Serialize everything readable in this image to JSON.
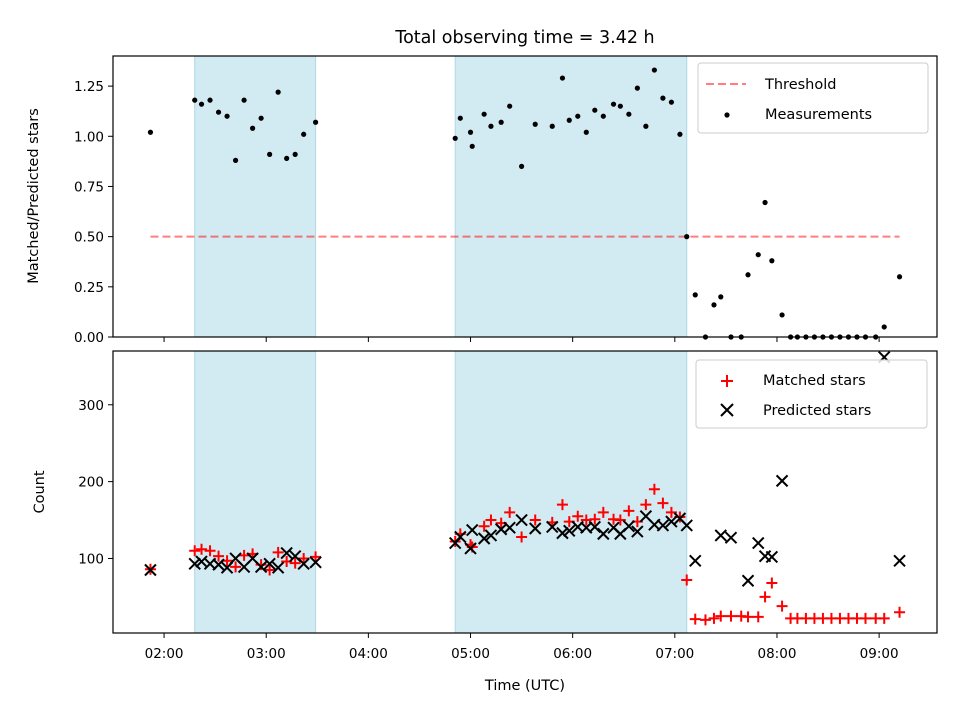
{
  "figure": {
    "title": "Total observing time = 3.42 h"
  },
  "colors": {
    "shade": "#add8e6",
    "threshold": "#ff0000",
    "measurement": "#000000",
    "matched": "#ff0000",
    "predicted": "#000000"
  },
  "chart_data": [
    {
      "type": "scatter",
      "ylabel": "Matched/Predicted stars",
      "xlabel": "",
      "xlim": [
        "01:30",
        "09:34"
      ],
      "ylim": [
        0,
        1.4
      ],
      "yticks": [
        "0.00",
        "0.25",
        "0.50",
        "0.75",
        "1.00",
        "1.25"
      ],
      "shaded_intervals": [
        [
          "02:18",
          "03:29"
        ],
        [
          "04:51",
          "07:07"
        ]
      ],
      "threshold": {
        "name": "Threshold",
        "value": 0.5,
        "x_range": [
          "01:52",
          "09:12"
        ]
      },
      "legend": {
        "position": "upper right",
        "entries": [
          "Threshold",
          "Measurements"
        ]
      },
      "series": [
        {
          "name": "Measurements",
          "x": [
            "01:52",
            "02:18",
            "02:22",
            "02:27",
            "02:32",
            "02:37",
            "02:42",
            "02:47",
            "02:52",
            "02:57",
            "03:02",
            "03:07",
            "03:12",
            "03:17",
            "03:22",
            "03:29",
            "04:51",
            "04:54",
            "05:00",
            "05:01",
            "05:08",
            "05:12",
            "05:18",
            "05:23",
            "05:30",
            "05:38",
            "05:48",
            "05:54",
            "05:58",
            "06:03",
            "06:08",
            "06:13",
            "06:18",
            "06:24",
            "06:28",
            "06:33",
            "06:38",
            "06:43",
            "06:48",
            "06:53",
            "06:58",
            "07:03",
            "07:07",
            "07:12",
            "07:18",
            "07:23",
            "07:27",
            "07:33",
            "07:39",
            "07:43",
            "07:49",
            "07:53",
            "07:57",
            "08:03",
            "08:08",
            "08:12",
            "08:17",
            "08:22",
            "08:27",
            "08:32",
            "08:37",
            "08:42",
            "08:47",
            "08:52",
            "08:58",
            "09:03",
            "09:12"
          ],
          "values": [
            1.02,
            1.18,
            1.16,
            1.18,
            1.12,
            1.1,
            0.88,
            1.18,
            1.04,
            1.09,
            0.91,
            1.22,
            0.89,
            0.91,
            1.01,
            1.07,
            0.99,
            1.09,
            1.02,
            0.95,
            1.11,
            1.05,
            1.07,
            1.15,
            0.85,
            1.06,
            1.05,
            1.29,
            1.08,
            1.1,
            1.02,
            1.13,
            1.1,
            1.16,
            1.15,
            1.11,
            1.24,
            1.05,
            1.33,
            1.19,
            1.17,
            1.01,
            0.5,
            0.21,
            0.0,
            0.16,
            0.2,
            0.0,
            0.0,
            0.31,
            0.41,
            0.67,
            0.38,
            0.11,
            0.0,
            0.0,
            0.0,
            0.0,
            0.0,
            0.0,
            0.0,
            0.0,
            0.0,
            0.0,
            0.0,
            0.05,
            0.3
          ]
        }
      ]
    },
    {
      "type": "scatter",
      "ylabel": "Count",
      "xlabel": "Time (UTC)",
      "xlim": [
        "01:30",
        "09:34"
      ],
      "ylim": [
        3,
        370
      ],
      "yticks": [
        "100",
        "200",
        "300"
      ],
      "xticks": [
        "02:00",
        "03:00",
        "04:00",
        "05:00",
        "06:00",
        "07:00",
        "08:00",
        "09:00"
      ],
      "shaded_intervals": [
        [
          "02:18",
          "03:29"
        ],
        [
          "04:51",
          "07:07"
        ]
      ],
      "legend": {
        "position": "upper right",
        "entries": [
          "Matched stars",
          "Predicted stars"
        ]
      },
      "series": [
        {
          "name": "Matched stars",
          "x": [
            "01:52",
            "02:18",
            "02:22",
            "02:27",
            "02:32",
            "02:37",
            "02:42",
            "02:47",
            "02:52",
            "02:57",
            "03:02",
            "03:07",
            "03:12",
            "03:17",
            "03:22",
            "03:29",
            "04:51",
            "04:54",
            "05:00",
            "05:01",
            "05:08",
            "05:12",
            "05:18",
            "05:23",
            "05:30",
            "05:38",
            "05:48",
            "05:54",
            "05:58",
            "06:03",
            "06:08",
            "06:13",
            "06:18",
            "06:24",
            "06:28",
            "06:33",
            "06:38",
            "06:43",
            "06:48",
            "06:53",
            "06:58",
            "07:03",
            "07:07",
            "07:12",
            "07:18",
            "07:23",
            "07:27",
            "07:33",
            "07:39",
            "07:43",
            "07:49",
            "07:53",
            "07:57",
            "08:03",
            "08:08",
            "08:12",
            "08:17",
            "08:22",
            "08:27",
            "08:32",
            "08:37",
            "08:42",
            "08:47",
            "08:52",
            "08:58",
            "09:03",
            "09:12"
          ],
          "values": [
            86,
            110,
            112,
            110,
            103,
            97,
            89,
            104,
            106,
            92,
            85,
            108,
            96,
            94,
            100,
            102,
            122,
            132,
            118,
            115,
            142,
            150,
            146,
            160,
            128,
            150,
            147,
            170,
            148,
            155,
            150,
            151,
            160,
            151,
            150,
            162,
            148,
            170,
            190,
            172,
            160,
            154,
            72,
            21,
            20,
            22,
            25,
            25,
            25,
            24,
            24,
            50,
            68,
            38,
            22,
            22,
            22,
            22,
            22,
            22,
            22,
            22,
            22,
            22,
            22,
            22,
            30
          ]
        },
        {
          "name": "Predicted stars",
          "x": [
            "01:52",
            "02:18",
            "02:22",
            "02:27",
            "02:32",
            "02:37",
            "02:42",
            "02:47",
            "02:52",
            "02:57",
            "03:02",
            "03:07",
            "03:12",
            "03:17",
            "03:22",
            "03:29",
            "04:51",
            "04:54",
            "05:00",
            "05:01",
            "05:08",
            "05:12",
            "05:18",
            "05:23",
            "05:30",
            "05:38",
            "05:48",
            "05:54",
            "05:58",
            "06:03",
            "06:08",
            "06:13",
            "06:18",
            "06:24",
            "06:28",
            "06:33",
            "06:38",
            "06:43",
            "06:48",
            "06:53",
            "06:58",
            "07:03",
            "07:07",
            "07:12",
            "07:27",
            "07:33",
            "07:43",
            "07:49",
            "07:53",
            "07:57",
            "08:03",
            "09:03",
            "09:12"
          ],
          "values": [
            85,
            93,
            96,
            93,
            92,
            88,
            100,
            89,
            100,
            89,
            93,
            88,
            107,
            103,
            93,
            95,
            120,
            128,
            113,
            137,
            126,
            130,
            138,
            140,
            150,
            139,
            141,
            133,
            136,
            141,
            140,
            141,
            132,
            140,
            132,
            142,
            135,
            155,
            144,
            143,
            148,
            152,
            143,
            97,
            130,
            127,
            71,
            120,
            103,
            102,
            201,
            362,
            97
          ]
        }
      ]
    }
  ]
}
